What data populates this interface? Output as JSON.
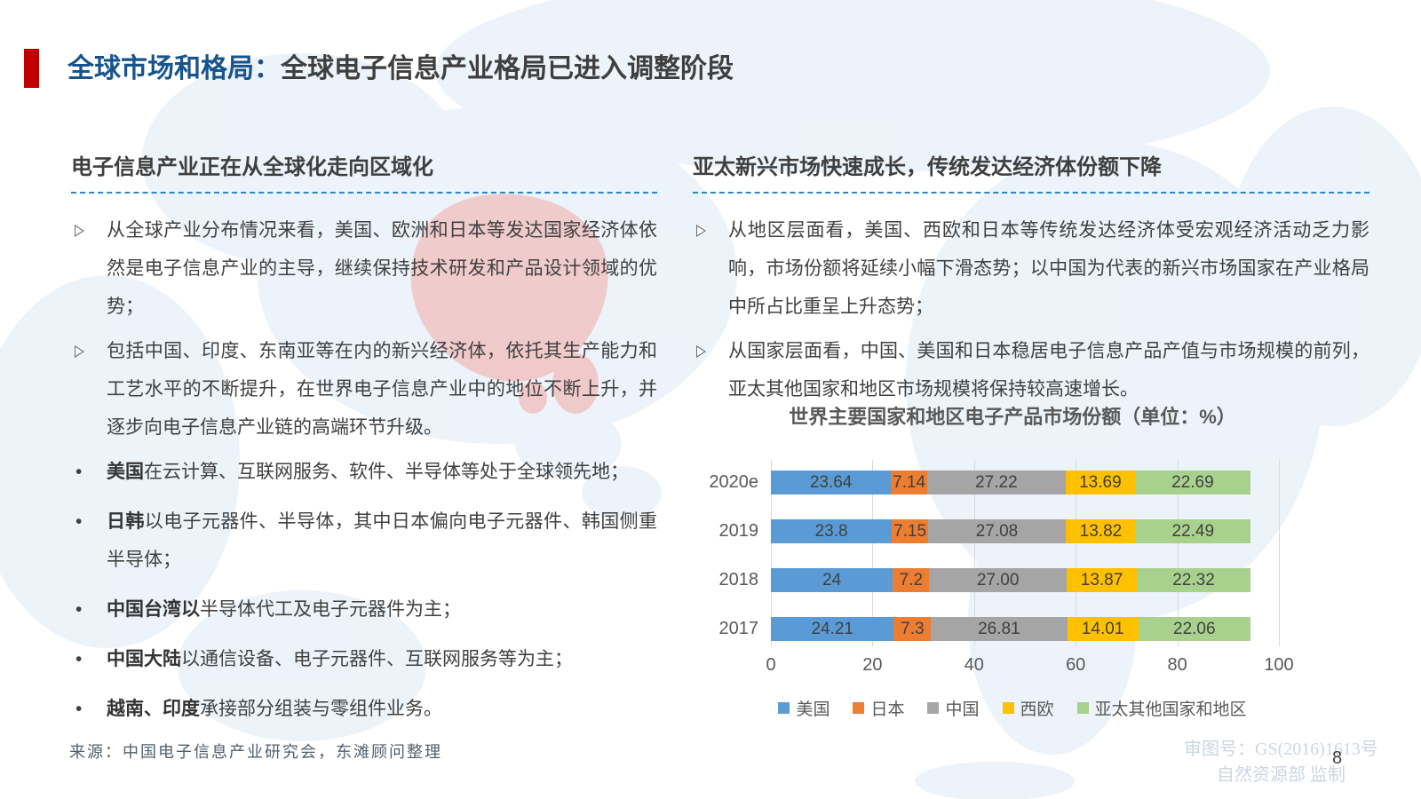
{
  "header": {
    "title_blue": "全球市场和格局：",
    "title_dark": "全球电子信息产业格局已进入调整阶段"
  },
  "markers": {
    "dot": "•"
  },
  "left_section": {
    "heading": "电子信息产业正在从全球化走向区域化",
    "arrow_bullets": [
      "从全球产业分布情况来看，美国、欧洲和日本等发达国家经济体依然是电子信息产业的主导，继续保持技术研发和产品设计领域的优势；",
      "包括中国、印度、东南亚等在内的新兴经济体，依托其生产能力和工艺水平的不断提升，在世界电子信息产业中的地位不断上升，并逐步向电子信息产业链的高端环节升级。"
    ],
    "dot_bullets": [
      {
        "lead": "美国",
        "rest": "在云计算、互联网服务、软件、半导体等处于全球领先地；"
      },
      {
        "lead": "日韩",
        "rest": "以电子元器件、半导体，其中日本偏向电子元器件、韩国侧重半导体；"
      },
      {
        "lead": "中国台湾以",
        "rest": "半导体代工及电子元器件为主；"
      },
      {
        "lead": "中国大陆",
        "rest": "以通信设备、电子元器件、互联网服务等为主；"
      },
      {
        "lead": "越南、印度",
        "rest": "承接部分组装与零组件业务。"
      }
    ]
  },
  "right_section": {
    "heading": "亚太新兴市场快速成长，传统发达经济体份额下降",
    "arrow_bullets": [
      "从地区层面看，美国、西欧和日本等传统发达经济体受宏观经济活动乏力影响，市场份额将延续小幅下滑态势；以中国为代表的新兴市场国家在产业格局中所占比重呈上升态势；",
      "从国家层面看，中国、美国和日本稳居电子信息产品产值与市场规模的前列，亚太其他国家和地区市场规模将保持较高速增长。"
    ]
  },
  "chart_data": {
    "type": "bar",
    "orientation": "horizontal-stacked",
    "title": "世界主要国家和地区电子产品市场份额（单位：%）",
    "categories": [
      "2020e",
      "2019",
      "2018",
      "2017"
    ],
    "series": [
      {
        "name": "美国",
        "color": "#5B9BD5",
        "values": [
          23.64,
          23.8,
          24,
          24.21
        ],
        "labels": [
          "23.64",
          "23.8",
          "24",
          "24.21"
        ]
      },
      {
        "name": "日本",
        "color": "#ED7D31",
        "values": [
          7.14,
          7.15,
          7.2,
          7.3
        ],
        "labels": [
          "7.14",
          "7.15",
          "7.2",
          "7.3"
        ]
      },
      {
        "name": "中国",
        "color": "#A5A5A5",
        "values": [
          27.22,
          27.08,
          27.0,
          26.81
        ],
        "labels": [
          "27.22",
          "27.08",
          "27.00",
          "26.81"
        ]
      },
      {
        "name": "西欧",
        "color": "#FFC000",
        "values": [
          13.69,
          13.82,
          13.87,
          14.01
        ],
        "labels": [
          "13.69",
          "13.82",
          "13.87",
          "14.01"
        ]
      },
      {
        "name": "亚太其他国家和地区",
        "color": "#A9D18E",
        "values": [
          22.69,
          22.49,
          22.32,
          22.06
        ],
        "labels": [
          "22.69",
          "22.49",
          "22.32",
          "22.06"
        ]
      }
    ],
    "x_axis": {
      "min": 0,
      "max": 100,
      "ticks": [
        0,
        20,
        40,
        60,
        80,
        100
      ]
    },
    "grid": true,
    "legend_position": "bottom"
  },
  "footer": {
    "source": "来源：中国电子信息产业研究会，东滩顾问整理",
    "watermark_line1": "审图号：GS(2016)1613号",
    "watermark_line2": "自然资源部 监制",
    "page_number": "8"
  }
}
